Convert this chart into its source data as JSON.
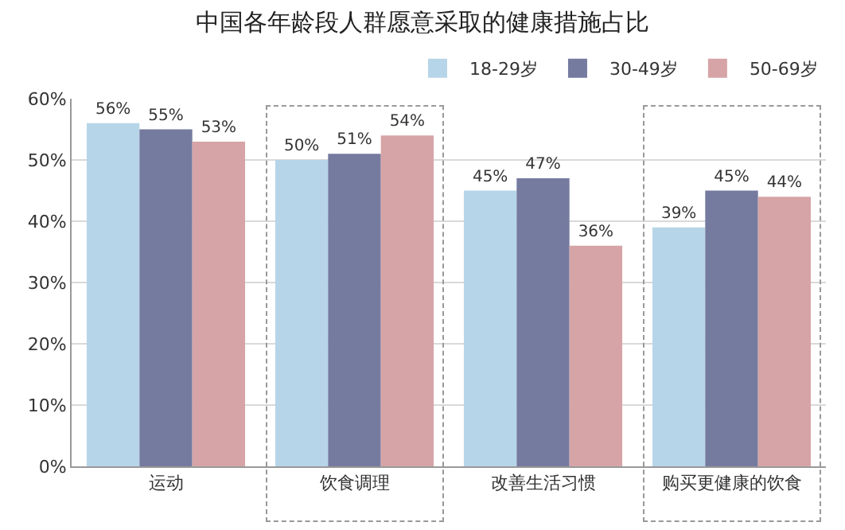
{
  "chart_data": {
    "type": "bar",
    "title": "中国各年龄段人群愿意采取的健康措施占比",
    "categories": [
      "运动",
      "饮食调理",
      "改善生活习惯",
      "购买更健康的饮食"
    ],
    "series": [
      {
        "name": "18-29岁",
        "color": "#b7d5e8",
        "values": [
          56,
          50,
          45,
          39
        ]
      },
      {
        "name": "30-49岁",
        "color": "#757a9f",
        "values": [
          55,
          51,
          47,
          45
        ]
      },
      {
        "name": "50-69岁",
        "color": "#d6a4a6",
        "values": [
          53,
          54,
          36,
          44
        ]
      }
    ],
    "ylim": [
      0,
      60
    ],
    "yticks": [
      {
        "value": 0,
        "label": "0%"
      },
      {
        "value": 10,
        "label": "10%"
      },
      {
        "value": 20,
        "label": "20%"
      },
      {
        "value": 30,
        "label": "30%"
      },
      {
        "value": 40,
        "label": "40%"
      },
      {
        "value": 50,
        "label": "50%"
      },
      {
        "value": 60,
        "label": "60%"
      }
    ],
    "grid": "y",
    "legend": "top right",
    "value_labels": [
      [
        "56%",
        "50%",
        "45%",
        "39%"
      ],
      [
        "55%",
        "51%",
        "47%",
        "45%"
      ],
      [
        "53%",
        "54%",
        "36%",
        "44%"
      ]
    ]
  }
}
